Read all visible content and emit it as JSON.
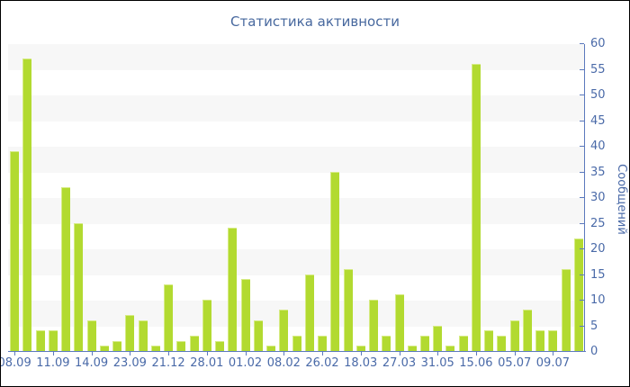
{
  "chart_data": {
    "type": "bar",
    "title": "Статистика активности",
    "ylabel": "Сообщений",
    "xlabel": "",
    "ylim": [
      0,
      60
    ],
    "ytick_step": 5,
    "legend": "none",
    "grid": "alternating horizontal bands of 5 units",
    "x_labels": [
      "08.09",
      "11.09",
      "14.09",
      "23.09",
      "21.12",
      "28.01",
      "01.02",
      "08.02",
      "26.02",
      "18.03",
      "27.03",
      "31.05",
      "15.06",
      "05.07",
      "09.07"
    ],
    "label_every_n_bars": 3,
    "values": [
      39,
      57,
      4,
      4,
      32,
      25,
      6,
      1,
      2,
      7,
      6,
      1,
      13,
      2,
      3,
      10,
      2,
      24,
      14,
      6,
      1,
      8,
      3,
      15,
      3,
      35,
      16,
      1,
      10,
      3,
      11,
      1,
      3,
      5,
      1,
      3,
      56,
      4,
      3,
      6,
      8,
      4,
      4,
      16,
      22
    ]
  },
  "colors": {
    "bar_fill": "#b2da30",
    "bar_highlight": "#d6eb85",
    "band_gray": "#f7f7f7",
    "axis_line": "#5b79bd",
    "text_blue": "#4a6aa8",
    "title_blue": "#47689e",
    "background": "#ffffff",
    "border": "#000000"
  }
}
